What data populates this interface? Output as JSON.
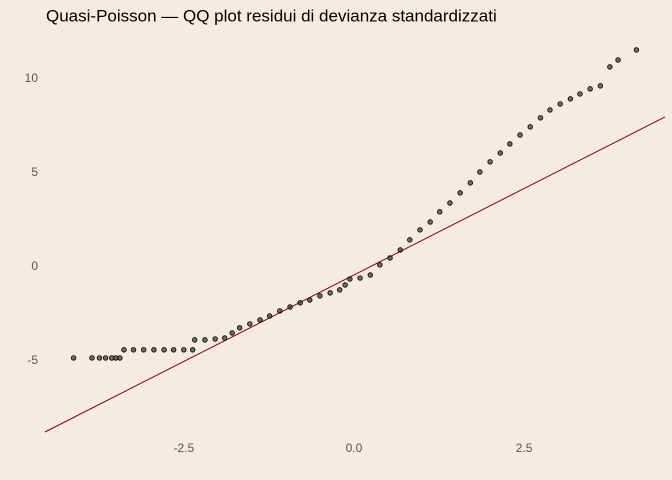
{
  "chart_data": {
    "type": "scatter",
    "title": "Quasi-Poisson — QQ plot residui di devianza standardizzati",
    "x": [
      -4.12,
      -3.85,
      -3.74,
      -3.65,
      -3.56,
      -3.5,
      -3.44,
      -3.38,
      -3.24,
      -3.09,
      -2.94,
      -2.79,
      -2.65,
      -2.5,
      -2.37,
      -2.34,
      -2.19,
      -2.04,
      -1.9,
      -1.79,
      -1.68,
      -1.53,
      -1.38,
      -1.24,
      -1.09,
      -0.94,
      -0.79,
      -0.65,
      -0.5,
      -0.35,
      -0.21,
      -0.13,
      -0.06,
      0.09,
      0.24,
      0.38,
      0.53,
      0.68,
      0.82,
      0.97,
      1.12,
      1.26,
      1.41,
      1.56,
      1.71,
      1.85,
      2.0,
      2.15,
      2.29,
      2.44,
      2.59,
      2.74,
      2.88,
      3.03,
      3.18,
      3.32,
      3.47,
      3.62,
      3.76,
      3.88,
      4.15
    ],
    "values": [
      -4.84,
      -4.84,
      -4.84,
      -4.84,
      -4.84,
      -4.84,
      -4.84,
      -4.41,
      -4.41,
      -4.41,
      -4.41,
      -4.41,
      -4.41,
      -4.41,
      -4.41,
      -3.88,
      -3.88,
      -3.83,
      -3.78,
      -3.51,
      -3.24,
      -3.03,
      -2.82,
      -2.61,
      -2.34,
      -2.13,
      -1.91,
      -1.76,
      -1.54,
      -1.38,
      -1.22,
      -0.96,
      -0.64,
      -0.59,
      -0.43,
      0.11,
      0.48,
      0.9,
      1.44,
      1.97,
      2.39,
      2.93,
      3.4,
      3.94,
      4.47,
      5.05,
      5.59,
      6.06,
      6.54,
      7.02,
      7.45,
      7.93,
      8.35,
      8.67,
      8.94,
      9.2,
      9.47,
      9.63,
      10.64,
      11.01,
      11.54
    ],
    "color": "#333333",
    "reference_line": {
      "x": [
        -4.54,
        4.57
      ],
      "values": [
        -8.78,
        7.98
      ],
      "color": "#8b0000"
    },
    "xlim": [
      -4.54,
      4.57
    ],
    "ylim": [
      -8.78,
      12.07
    ],
    "xticks": [
      -2.5,
      {
        "value": 0,
        "label": "0.0"
      },
      2.5
    ],
    "yticks": [
      -5,
      0,
      5,
      10
    ],
    "grid": false
  }
}
